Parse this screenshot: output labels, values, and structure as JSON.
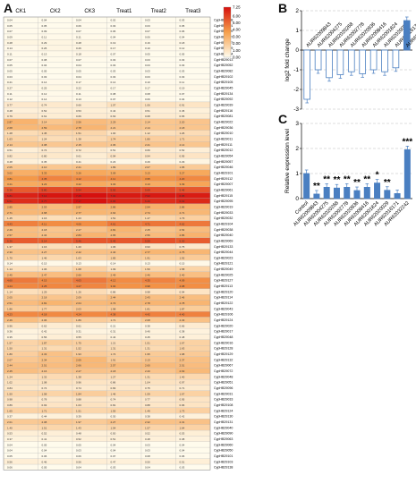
{
  "panels": {
    "a": "A",
    "b": "B",
    "c": "C"
  },
  "heatmap": {
    "columns": [
      "CK1",
      "CK2",
      "CK3",
      "Treat1",
      "Treat2",
      "Treat3"
    ],
    "legend_ticks": [
      "7.25",
      "6.00",
      "5.00",
      "4.00",
      "3.00",
      "2.00",
      "1.00",
      "0.00"
    ],
    "colors": {
      "low": "#fffcee",
      "mid": "#f6a04c",
      "high": "#d6100e"
    },
    "rows": [
      {
        "gene": "CypHB29008",
        "values": [
          0.04,
          0.04,
          0.04,
          0.02,
          0.03,
          0.03
        ]
      },
      {
        "gene": "CypHB29091",
        "values": [
          0.05,
          0.05,
          0.06,
          0.03,
          0.03,
          0.05
        ]
      },
      {
        "gene": "CypHB29099",
        "values": [
          0.07,
          0.09,
          0.07,
          0.06,
          0.07,
          0.06
        ]
      },
      {
        "gene": "CypHB29037",
        "values": [
          0.09,
          0.11,
          0.11,
          0.04,
          0.06,
          0.04
        ]
      },
      {
        "gene": "CypHB29027",
        "values": [
          0.28,
          0.29,
          0.28,
          0.19,
          0.16,
          0.18
        ]
      },
      {
        "gene": "CypHB29029",
        "values": [
          0.14,
          0.26,
          0.26,
          0.17,
          0.1,
          0.12
        ]
      },
      {
        "gene": "CypHB29034",
        "values": [
          0.11,
          0.13,
          0.18,
          0.07,
          0.05,
          0.05
        ]
      },
      {
        "gene": "CypHB29013",
        "values": [
          0.07,
          0.08,
          0.07,
          0.03,
          0.03,
          0.03
        ]
      },
      {
        "gene": "CypHB29052",
        "values": [
          0.05,
          0.04,
          0.04,
          0.03,
          0.03,
          0.03
        ]
      },
      {
        "gene": "CypHB29082",
        "values": [
          0.05,
          0.05,
          0.05,
          0.03,
          0.03,
          0.03
        ]
      },
      {
        "gene": "CypHB29102",
        "values": [
          0.03,
          0.03,
          0.04,
          0.03,
          0.03,
          0.03
        ]
      },
      {
        "gene": "CypHB29105",
        "values": [
          0.21,
          0.14,
          0.17,
          0.14,
          0.1,
          0.11
        ]
      },
      {
        "gene": "CypHB29045",
        "values": [
          0.27,
          0.25,
          0.22,
          0.17,
          0.17,
          0.19
        ]
      },
      {
        "gene": "CypHB29134",
        "values": [
          0.11,
          0.12,
          0.11,
          0.08,
          0.08,
          0.07
        ]
      },
      {
        "gene": "CypHB29092",
        "values": [
          0.12,
          0.14,
          0.13,
          0.07,
          0.06,
          0.04
        ]
      },
      {
        "gene": "CypHB29039",
        "values": [
          0.77,
          0.74,
          0.66,
          1.07,
          1.06,
          0.91
        ]
      },
      {
        "gene": "CypHB29116",
        "values": [
          0.48,
          0.52,
          0.53,
          0.44,
          0.51,
          0.45
        ]
      },
      {
        "gene": "CypHB29081",
        "values": [
          0.79,
          0.61,
          0.66,
          0.63,
          0.68,
          0.65
        ]
      },
      {
        "gene": "CypHB29022",
        "values": [
          2.87,
          2.14,
          2.56,
          2.29,
          2.14,
          2.2
        ]
      },
      {
        "gene": "CypHB29036",
        "values": [
          2.68,
          2.59,
          2.78,
          2.21,
          2.14,
          2.18
        ]
      },
      {
        "gene": "CypHB29010",
        "values": [
          1.28,
          1.45,
          1.51,
          1.0,
          1.12,
          1.26
        ]
      },
      {
        "gene": "CypHB29011",
        "values": [
          1.63,
          1.24,
          1.38,
          1.74,
          1.8,
          1.71
        ]
      },
      {
        "gene": "CypHB29111",
        "values": [
          2.14,
          2.08,
          2.15,
          2.06,
          2.21,
          2.14
        ]
      },
      {
        "gene": "CypHB29012",
        "values": [
          0.51,
          0.74,
          0.72,
          0.51,
          0.66,
          0.52
        ]
      },
      {
        "gene": "CypHB29054",
        "values": [
          0.82,
          0.8,
          0.61,
          0.94,
          0.94,
          0.95
        ]
      },
      {
        "gene": "CypHB29057",
        "values": [
          0.48,
          0.35,
          0.41,
          0.23,
          0.29,
          0.29
        ]
      },
      {
        "gene": "CypHB29046",
        "values": [
          2.05,
          2.1,
          2.21,
          1.89,
          2.07,
          1.95
        ]
      },
      {
        "gene": "CypHB29101",
        "values": [
          3.02,
          3.33,
          3.26,
          3.09,
          3.13,
          3.27
        ]
      },
      {
        "gene": "CypHB29112",
        "values": [
          3.81,
          4.35,
          4.12,
          4.11,
          3.95,
          4.2
        ]
      },
      {
        "gene": "CypHB29007",
        "values": [
          3.21,
          3.23,
          3.22,
          3.03,
          3.13,
          3.39
        ]
      },
      {
        "gene": "CypHB29061",
        "values": [
          5.36,
          5.8,
          5.94,
          5.92,
          5.69,
          5.46
        ]
      },
      {
        "gene": "CypHB29115",
        "values": [
          6.81,
          7.11,
          7.25,
          7.01,
          7.02,
          6.95
        ]
      },
      {
        "gene": "CypHB29095",
        "values": [
          6.51,
          6.77,
          7.17,
          6.65,
          6.49,
          6.63
        ]
      },
      {
        "gene": "CypHB29019",
        "values": [
          2.85,
          2.53,
          2.97,
          2.86,
          2.94,
          2.86
        ]
      },
      {
        "gene": "CypHB29033",
        "values": [
          2.71,
          2.68,
          2.77,
          2.64,
          2.74,
          2.71
        ]
      },
      {
        "gene": "CypHB29032",
        "values": [
          1.45,
          1.16,
          1.23,
          1.51,
          1.47,
          1.73
        ]
      },
      {
        "gene": "CypHB29104",
        "values": [
          4.43,
          4.11,
          4.06,
          4.61,
          4.71,
          4.62
        ]
      },
      {
        "gene": "CypHB29038",
        "values": [
          2.49,
          2.18,
          2.27,
          2.81,
          2.25,
          2.54
        ]
      },
      {
        "gene": "CypHB29040",
        "values": [
          2.57,
          2.34,
          2.83,
          2.65,
          2.56,
          2.86
        ]
      },
      {
        "gene": "CypHB29069",
        "values": [
          5.36,
          5.14,
          5.46,
          5.43,
          5.59,
          5.3
        ]
      },
      {
        "gene": "CypHB29133",
        "values": [
          1.37,
          1.16,
          1.2,
          1.06,
          0.93,
          0.75
        ]
      },
      {
        "gene": "CypHB29044",
        "values": [
          2.3,
          2.27,
          2.42,
          2.4,
          2.77,
          2.75
        ]
      },
      {
        "gene": "CypHB29023",
        "values": [
          1.7,
          1.46,
          1.63,
          1.85,
          1.91,
          1.92
        ]
      },
      {
        "gene": "CypHB29121",
        "values": [
          0.14,
          0.15,
          0.13,
          0.14,
          0.13,
          0.15
        ]
      },
      {
        "gene": "CypHB29049",
        "values": [
          1.14,
          1.06,
          1.68,
          1.09,
          1.5,
          1.58
        ]
      },
      {
        "gene": "CypHB29025",
        "values": [
          2.45,
          2.47,
          2.66,
          2.49,
          2.46,
          2.4
        ]
      },
      {
        "gene": "CypHB29127",
        "values": [
          4.6,
          4.15,
          4.63,
          4.12,
          4.35,
          4.09
        ]
      },
      {
        "gene": "CypHB29113",
        "values": [
          4.24,
          4.25,
          4.27,
          3.94,
          3.98,
          4.08
        ]
      },
      {
        "gene": "CypHB29120",
        "values": [
          1.14,
          1.29,
          1.26,
          0.86,
          0.98,
          0.94
        ]
      },
      {
        "gene": "CypHB29114",
        "values": [
          2.05,
          2.18,
          2.09,
          2.44,
          2.43,
          2.46
        ]
      },
      {
        "gene": "CypHB29122",
        "values": [
          2.51,
          2.81,
          2.64,
          2.72,
          2.78,
          2.78
        ]
      },
      {
        "gene": "CypHB29043",
        "values": [
          1.86,
          1.77,
          2.03,
          1.98,
          1.81,
          1.87
        ]
      },
      {
        "gene": "CypHB29106",
        "values": [
          4.23,
          4.18,
          4.24,
          4.38,
          4.42,
          4.4
        ]
      },
      {
        "gene": "CypHB29124",
        "values": [
          2.46,
          2.06,
          1.89,
          1.71,
          2.08,
          2.33
        ]
      },
      {
        "gene": "CypHB29020",
        "values": [
          0.96,
          0.62,
          0.61,
          0.21,
          0.38,
          0.66
        ]
      },
      {
        "gene": "CypHB29017",
        "values": [
          0.36,
          0.42,
          0.31,
          0.31,
          0.4,
          0.38
        ]
      },
      {
        "gene": "CypHB29048",
        "values": [
          0.35,
          0.56,
          0.55,
          0.44,
          0.45,
          0.48
        ]
      },
      {
        "gene": "CypHB29016",
        "values": [
          1.57,
          1.87,
          1.75,
          1.21,
          1.51,
          1.67
        ]
      },
      {
        "gene": "CypHB29128",
        "values": [
          1.5,
          1.31,
          1.52,
          1.31,
          1.31,
          1.63
        ]
      },
      {
        "gene": "CypHB29129",
        "values": [
          1.8,
          2.33,
          1.93,
          1.74,
          1.95,
          1.98
        ]
      },
      {
        "gene": "CypHB29132",
        "values": [
          2.07,
          2.34,
          2.69,
          1.91,
          2.13,
          2.37
        ]
      },
      {
        "gene": "CypHB29067",
        "values": [
          2.44,
          2.51,
          2.66,
          2.57,
          2.6,
          2.51
        ]
      },
      {
        "gene": "CypHB29072",
        "values": [
          2.45,
          2.16,
          2.27,
          2.18,
          2.2,
          2.63
        ]
      },
      {
        "gene": "CypHB29048",
        "values": [
          1.24,
          1.32,
          1.38,
          1.27,
          1.31,
          1.4
        ]
      },
      {
        "gene": "CypHB29051",
        "values": [
          1.02,
          1.08,
          0.96,
          0.86,
          1.04,
          0.97
        ]
      },
      {
        "gene": "CypHB29096",
        "values": [
          0.84,
          0.74,
          0.74,
          0.83,
          0.75,
          0.71
        ]
      },
      {
        "gene": "CypHB29031",
        "values": [
          1.5,
          1.58,
          1.84,
          1.46,
          1.59,
          1.67
        ]
      },
      {
        "gene": "CypHB29033",
        "values": [
          0.98,
          0.78,
          0.88,
          0.74,
          0.77,
          0.95
        ]
      },
      {
        "gene": "CypHB29108",
        "values": [
          0.89,
          0.93,
          1.03,
          0.81,
          0.88,
          0.96
        ]
      },
      {
        "gene": "CypHB29124",
        "values": [
          1.65,
          1.71,
          1.51,
          1.55,
          1.49,
          1.73
        ]
      },
      {
        "gene": "CypHB29130",
        "values": [
          0.37,
          0.44,
          0.39,
          0.3,
          0.38,
          0.42
        ]
      },
      {
        "gene": "CypHB29131",
        "values": [
          2.01,
          2.08,
          1.97,
          2.27,
          2.32,
          2.31
        ]
      },
      {
        "gene": "CypHB29040",
        "values": [
          1.4,
          1.51,
          1.43,
          1.54,
          1.57,
          1.64
        ]
      },
      {
        "gene": "CypHB29090",
        "values": [
          0.53,
          0.52,
          0.48,
          0.5,
          0.52,
          0.53
        ]
      },
      {
        "gene": "CypHB29063",
        "values": [
          0.37,
          0.41,
          0.52,
          0.51,
          0.48,
          0.38
        ]
      },
      {
        "gene": "CypHB29060",
        "values": [
          0.04,
          0.05,
          0.05,
          0.04,
          0.03,
          0.04
        ]
      },
      {
        "gene": "CypHB29050",
        "values": [
          0.04,
          0.04,
          0.03,
          0.04,
          0.03,
          0.04
        ]
      },
      {
        "gene": "CypHB29101",
        "values": [
          0.05,
          0.06,
          0.06,
          0.07,
          0.08,
          0.06
        ]
      },
      {
        "gene": "CypHB29103",
        "values": [
          0.56,
          0.46,
          0.56,
          0.47,
          0.5,
          0.51
        ]
      },
      {
        "gene": "CypHB29138",
        "values": [
          0.06,
          0.05,
          0.04,
          0.03,
          0.04,
          0.03
        ]
      }
    ]
  },
  "chart_data": [
    {
      "type": "bar",
      "panel": "B",
      "ylabel": "log2 fold change",
      "ylim": [
        -3,
        2
      ],
      "yticks": [
        -3,
        -2,
        -1,
        0,
        1,
        2
      ],
      "grid": "dashed",
      "categories": [
        "AUR62009843",
        "AUR62004275",
        "AUR62020268",
        "AUR62002778",
        "AUR62020936",
        "AUR62008416",
        "AUR62001824",
        "AUR62020029",
        "AUR62016171",
        "AUR62032242"
      ],
      "series": [
        {
          "values": [
            -2.5,
            -1.0,
            -1.4,
            -1.25,
            -1.1,
            -1.2,
            -1.0,
            -1.1,
            -0.9,
            1.5
          ]
        }
      ],
      "colors": {
        "bar": "#4a7fc1"
      }
    },
    {
      "type": "bar",
      "panel": "C",
      "ylabel": "Relative expression level",
      "ylim": [
        0,
        3
      ],
      "yticks": [
        0,
        1,
        2,
        3
      ],
      "grid": "dashed",
      "categories": [
        "Control",
        "AUR62009843",
        "AUR62004275",
        "AUR62020268",
        "AUR62002778",
        "AUR62020936",
        "AUR62008416",
        "AUR62001824",
        "AUR62020029",
        "AUR62016171",
        "AUR62032242"
      ],
      "series": [
        {
          "values": [
            1.0,
            0.18,
            0.45,
            0.42,
            0.45,
            0.32,
            0.45,
            0.62,
            0.33,
            0.2,
            1.95
          ]
        }
      ],
      "significance": [
        "",
        "**",
        "**",
        "**",
        "**",
        "**",
        "**",
        "*",
        "**",
        "",
        "***"
      ],
      "colors": {
        "bar": "#4a7fc1"
      }
    }
  ]
}
